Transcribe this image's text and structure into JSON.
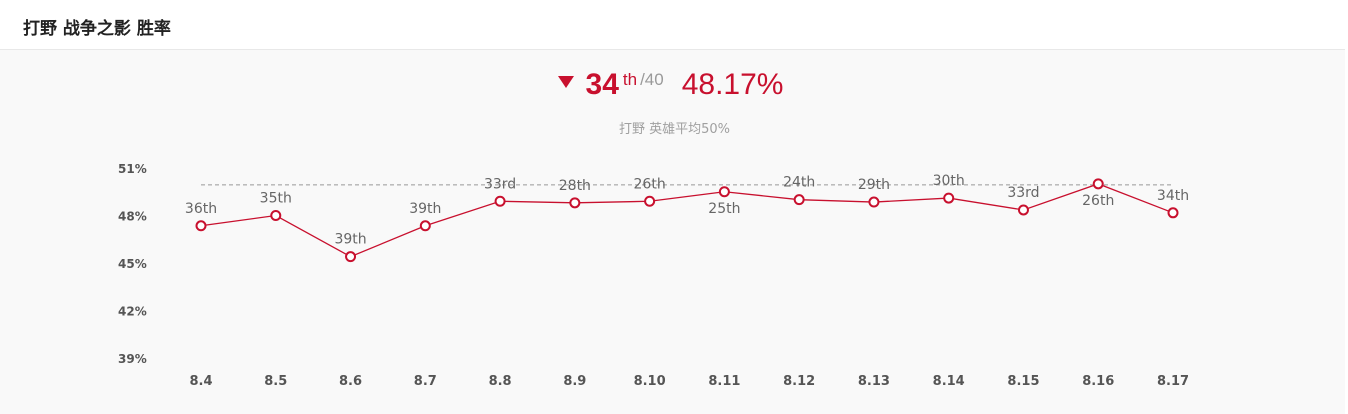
{
  "header": {
    "title": "打野 战争之影 胜率"
  },
  "summary": {
    "trend": "down",
    "rank": "34",
    "rank_suffix": "th",
    "rank_total": "/40",
    "win_rate": "48.17%",
    "subtitle": "打野 英雄平均50%"
  },
  "colors": {
    "accent": "#c8102e",
    "average_line": "#999999",
    "background": "#f9f9f9"
  },
  "chart_data": {
    "type": "line",
    "categories": [
      "8.4",
      "8.5",
      "8.6",
      "8.7",
      "8.8",
      "8.9",
      "8.10",
      "8.11",
      "8.12",
      "8.13",
      "8.14",
      "8.15",
      "8.16",
      "8.17"
    ],
    "series": [
      {
        "values": [
          47.35,
          48.0,
          45.4,
          47.35,
          48.9,
          48.8,
          48.9,
          49.5,
          49.0,
          48.85,
          49.1,
          48.35,
          50.0,
          48.17
        ],
        "rank_labels": [
          "36th",
          "35th",
          "39th",
          "39th",
          "33rd",
          "28th",
          "26th",
          "25th",
          "24th",
          "29th",
          "30th",
          "33rd",
          "26th",
          "34th"
        ],
        "color": "#c8102e"
      }
    ],
    "reference_line": {
      "value": 50,
      "style": "dashed"
    },
    "yticks": [
      39,
      42,
      45,
      48,
      51
    ],
    "ytick_labels": [
      "39%",
      "42%",
      "45%",
      "48%",
      "51%"
    ],
    "ylim": [
      39,
      51
    ],
    "title": "",
    "xlabel": "",
    "ylabel": "",
    "grid": false,
    "legend": "none"
  }
}
